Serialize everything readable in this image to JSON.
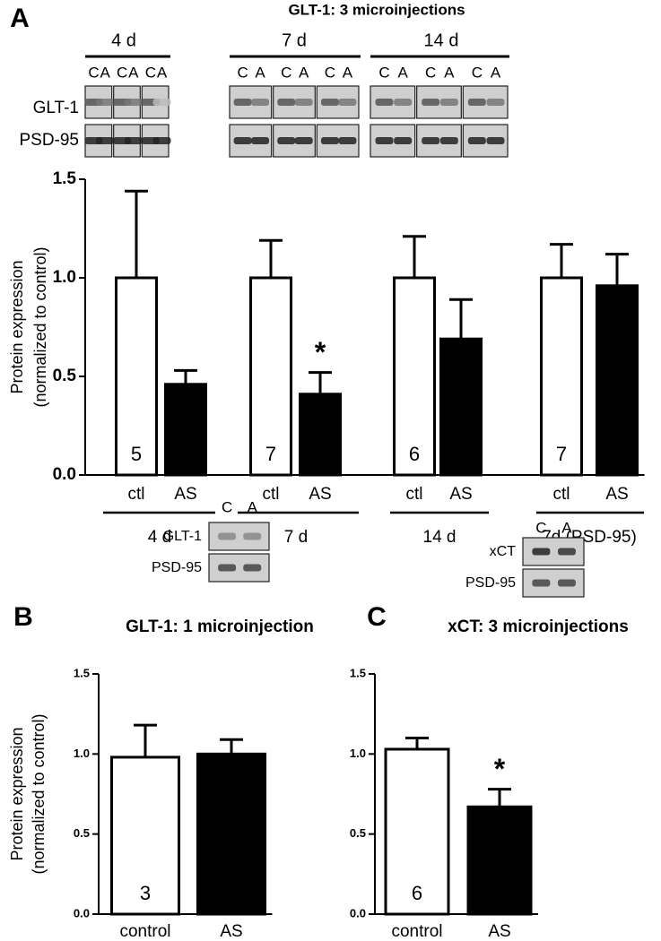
{
  "chart_data": [
    {
      "panel": "A",
      "type": "bar",
      "title": "GLT-1: 3 microinjections",
      "y_label": [
        "Protein expression",
        "(normalized to control)"
      ],
      "blots": {
        "lanes": [
          "C",
          "A"
        ],
        "groups": [
          "4 d",
          "7 d",
          "14 d"
        ],
        "rows": [
          "GLT-1",
          "PSD-95"
        ]
      },
      "categories": [
        "ctl",
        "AS",
        "ctl",
        "AS",
        "ctl",
        "AS",
        "ctl",
        "AS"
      ],
      "groups": [
        "4 d",
        "7 d",
        "14 d",
        "7d (PSD-95)"
      ],
      "values": [
        1.0,
        0.46,
        1.0,
        0.41,
        1.0,
        0.69,
        1.0,
        0.96
      ],
      "errors": [
        0.44,
        0.07,
        0.19,
        0.11,
        0.21,
        0.2,
        0.17,
        0.16
      ],
      "sample_sizes": [
        5,
        5,
        7,
        7,
        6,
        6,
        7,
        7
      ],
      "colors": [
        "#ffffff",
        "#000000"
      ],
      "annotations": [
        {
          "text": "*",
          "index": 3
        }
      ],
      "ylim": [
        0,
        1.5
      ],
      "yticks": [
        {
          "value": 0,
          "label": "0.0"
        },
        {
          "value": 0.5,
          "label": "0.5"
        },
        {
          "value": 1,
          "label": "1.0"
        },
        {
          "value": 1.5,
          "label": "1.5"
        }
      ]
    },
    {
      "panel": "B",
      "type": "bar",
      "title": "GLT-1: 1 microinjection",
      "y_label": [
        "Protein expression",
        "(normalized to control)"
      ],
      "blots": {
        "lanes": [
          "C",
          "A"
        ],
        "rows": [
          "GLT-1",
          "PSD-95"
        ]
      },
      "categories": [
        "control",
        "AS"
      ],
      "values": [
        0.98,
        1.0
      ],
      "errors": [
        0.2,
        0.09
      ],
      "sample_sizes": [
        3,
        3
      ],
      "colors": [
        "#ffffff",
        "#000000"
      ],
      "ylim": [
        0,
        1.5
      ],
      "yticks": [
        {
          "value": 0,
          "label": "0.0"
        },
        {
          "value": 0.5,
          "label": "0.5"
        },
        {
          "value": 1,
          "label": "1.0"
        },
        {
          "value": 1.5,
          "label": "1.5"
        }
      ]
    },
    {
      "panel": "C",
      "type": "bar",
      "title": "xCT: 3 microinjections",
      "blots": {
        "lanes": [
          "C",
          "A"
        ],
        "rows": [
          "xCT",
          "PSD-95"
        ]
      },
      "categories": [
        "control",
        "AS"
      ],
      "values": [
        1.03,
        0.67
      ],
      "errors": [
        0.07,
        0.11
      ],
      "sample_sizes": [
        6,
        6
      ],
      "colors": [
        "#ffffff",
        "#000000"
      ],
      "annotations": [
        {
          "text": "*",
          "index": 1
        }
      ],
      "ylim": [
        0,
        1.5
      ],
      "yticks": [
        {
          "value": 0,
          "label": "0.0"
        },
        {
          "value": 0.5,
          "label": "0.5"
        },
        {
          "value": 1,
          "label": "1.0"
        },
        {
          "value": 1.5,
          "label": "1.5"
        }
      ]
    }
  ]
}
